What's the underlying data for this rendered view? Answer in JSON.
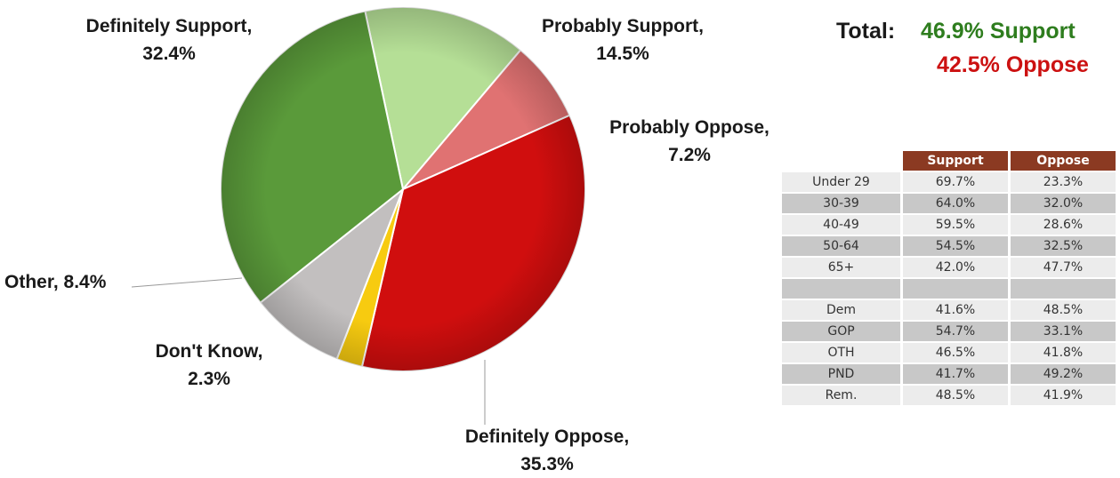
{
  "chart_data": [
    {
      "type": "pie",
      "slices": [
        {
          "label": "Definitely Support",
          "value": 32.4,
          "value_label": "32.4%",
          "color": "#5a9a3a"
        },
        {
          "label": "Probably Support",
          "value": 14.5,
          "value_label": "14.5%",
          "color": "#b5df96"
        },
        {
          "label": "Probably Oppose",
          "value": 7.2,
          "value_label": "7.2%",
          "color": "#e07272"
        },
        {
          "label": "Definitely Oppose",
          "value": 35.3,
          "value_label": "35.3%",
          "color": "#d00e0e"
        },
        {
          "label": "Don't Know",
          "value": 2.3,
          "value_label": "2.3%",
          "color": "#f7cb10"
        },
        {
          "label": "Other",
          "value": 8.4,
          "value_label": "8.4%",
          "color": "#c2bfbf"
        }
      ]
    },
    {
      "type": "table",
      "columns": [
        "",
        "Support",
        "Oppose"
      ],
      "rows": [
        [
          "Under 29",
          "69.7%",
          "23.3%"
        ],
        [
          "30-39",
          "64.0%",
          "32.0%"
        ],
        [
          "40-49",
          "59.5%",
          "28.6%"
        ],
        [
          "50-64",
          "54.5%",
          "32.5%"
        ],
        [
          "65+",
          "42.0%",
          "47.7%"
        ],
        [
          "",
          "",
          ""
        ],
        [
          "Dem",
          "41.6%",
          "48.5%"
        ],
        [
          "GOP",
          "54.7%",
          "33.1%"
        ],
        [
          "OTH",
          "46.5%",
          "41.8%"
        ],
        [
          "PND",
          "41.7%",
          "49.2%"
        ],
        [
          "Rem.",
          "48.5%",
          "41.9%"
        ]
      ]
    }
  ],
  "totals": {
    "label": "Total:",
    "support": "46.9% Support",
    "oppose": "42.5% Oppose",
    "support_color": "#2e7d1e",
    "oppose_color": "#cc1111"
  },
  "labels": {
    "definitely_support": {
      "name": "Definitely Support,",
      "pct": "32.4%"
    },
    "probably_support": {
      "name": "Probably Support,",
      "pct": "14.5%"
    },
    "probably_oppose": {
      "name": "Probably Oppose,",
      "pct": "7.2%"
    },
    "definitely_oppose": {
      "name": "Definitely Oppose,",
      "pct": "35.3%"
    },
    "dont_know": {
      "name": "Don't Know,",
      "pct": "2.3%"
    },
    "other": {
      "name": "Other, 8.4%"
    }
  }
}
